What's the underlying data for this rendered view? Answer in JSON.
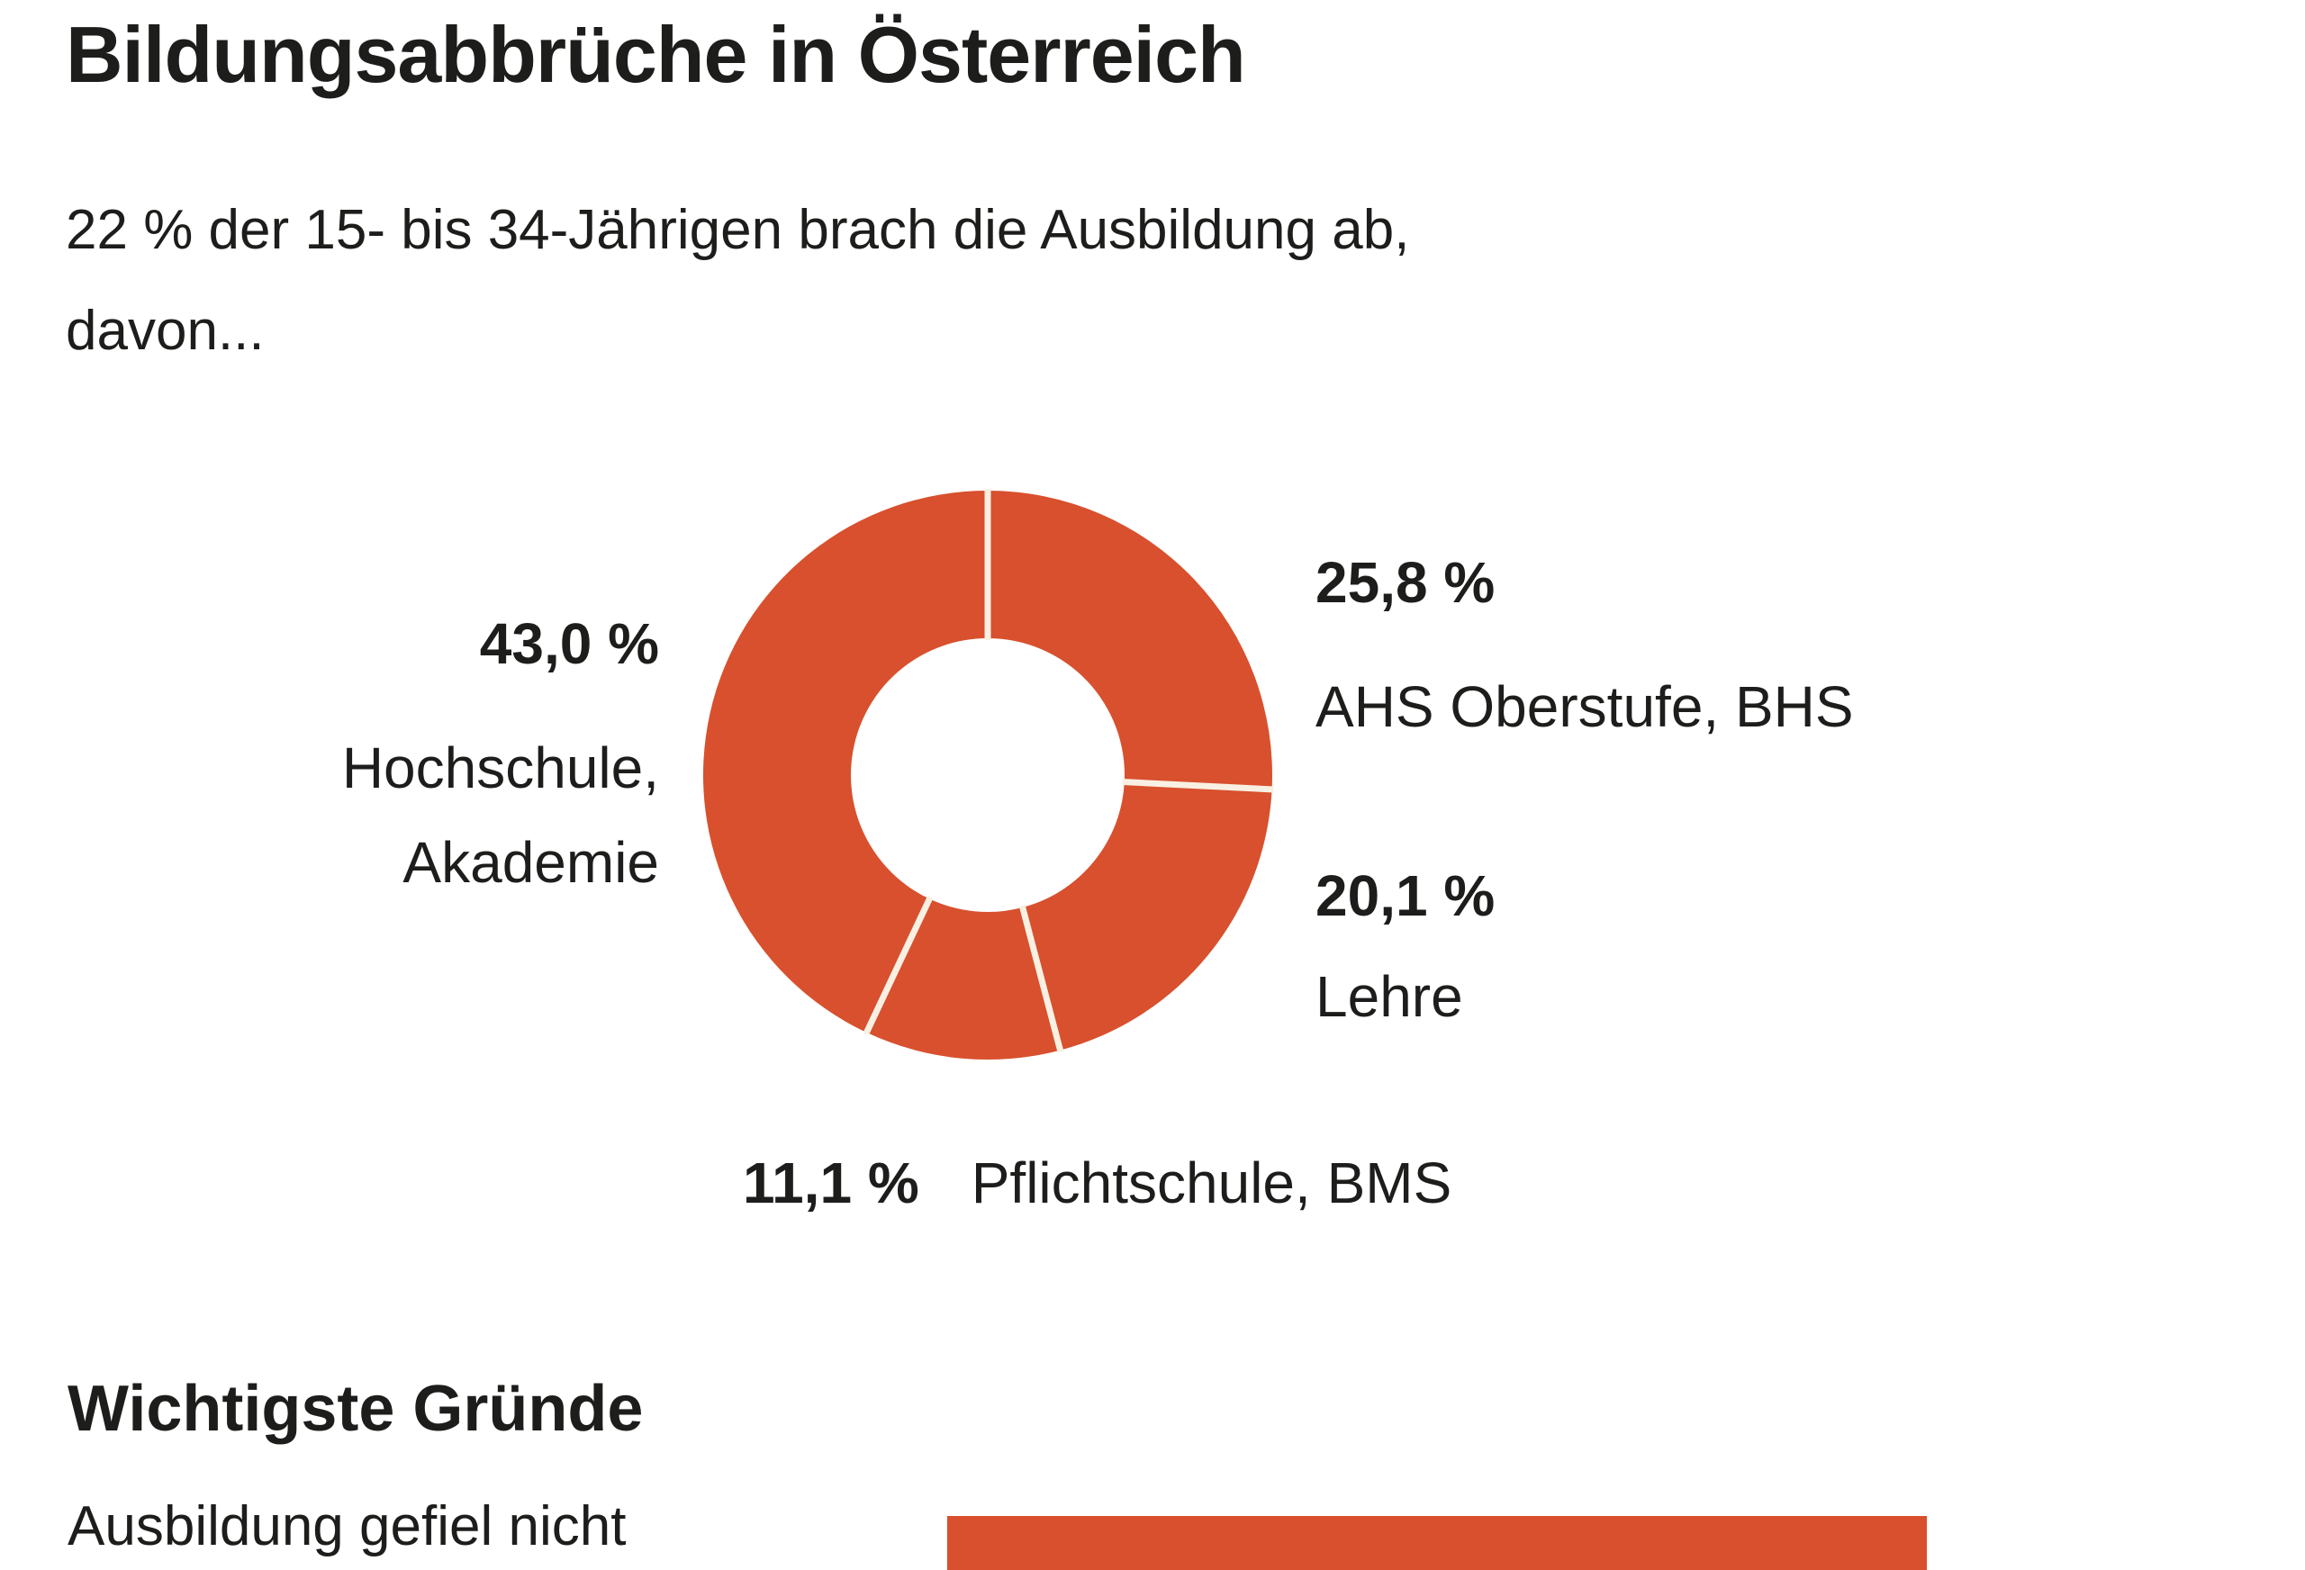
{
  "title": "Bildungsabbrüche in Österreich",
  "subtitle": {
    "line1": "22 % der 15- bis 34-Jährigen brach die Ausbildung ab,",
    "line2": "davon..."
  },
  "colors": {
    "accent": "#d8502d",
    "separator": "#f8f0e2",
    "text": "#1d1d1b",
    "background": "#ffffff"
  },
  "chart_data": [
    {
      "type": "pie",
      "donut": true,
      "title": "",
      "start_angle_deg": 0,
      "direction": "clockwise",
      "color": "#d8502d",
      "inner_radius_ratio": 0.48,
      "legend_position": "around",
      "segments": [
        {
          "label": "AHS Oberstufe, BHS",
          "value": 25.8,
          "display": "25,8 %"
        },
        {
          "label": "Lehre",
          "value": 20.1,
          "display": "20,1 %"
        },
        {
          "label": "Pflichtschule, BMS",
          "value": 11.1,
          "display": "11,1 %"
        },
        {
          "label": "Hochschule, Akademie",
          "value": 43.0,
          "display": "43,0 %",
          "label_lines": [
            "Hochschule,",
            "Akademie"
          ]
        }
      ]
    },
    {
      "type": "bar",
      "title": "Wichtigste Gründe",
      "orientation": "horizontal",
      "categories": [
        "Ausbildung gefiel nicht"
      ],
      "values": [
        null
      ],
      "truncated": true,
      "note_visible_in_image": "only the first category label and the start of its bar are visible; chart is cut off at the bottom edge"
    }
  ],
  "section2": {
    "heading": "Wichtigste Gründe",
    "first_bar_label": "Ausbildung gefiel nicht"
  }
}
